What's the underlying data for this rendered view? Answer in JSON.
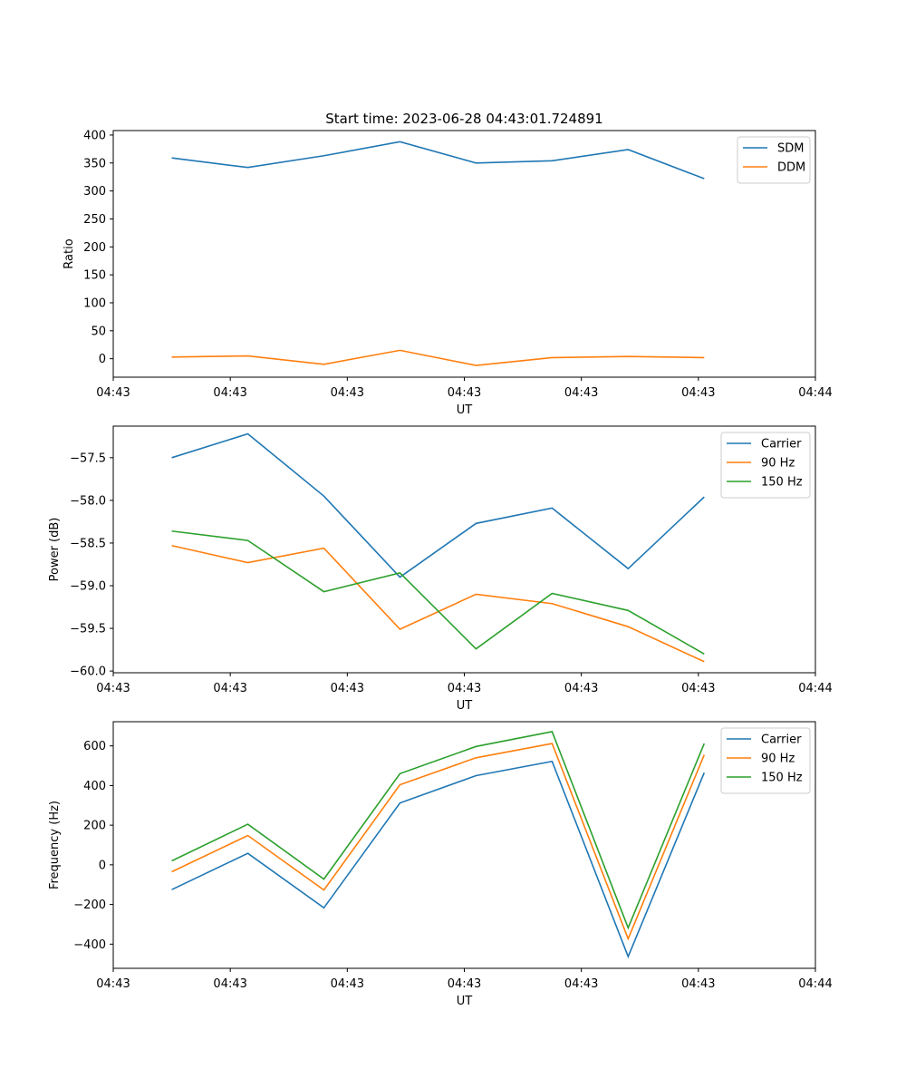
{
  "figure": {
    "title": "Start time: 2023-06-28 04:43:01.724891"
  },
  "chart_data": [
    {
      "type": "line",
      "ylabel": "Ratio",
      "xlabel": "UT",
      "xlim": [
        0,
        12
      ],
      "xticks": [
        0,
        2,
        4,
        6,
        8,
        10,
        12
      ],
      "xtick_labels": [
        "04:43",
        "04:43",
        "04:43",
        "04:43",
        "04:43",
        "04:43",
        "04:44"
      ],
      "ylim": [
        -33,
        408
      ],
      "yticks": [
        0,
        50,
        100,
        150,
        200,
        250,
        300,
        350,
        400
      ],
      "ytick_labels": [
        "0",
        "50",
        "100",
        "150",
        "200",
        "250",
        "300",
        "350",
        "400"
      ],
      "x": [
        1,
        2.3,
        3.6,
        4.9,
        6.2,
        7.5,
        8.8,
        10.1
      ],
      "series": [
        {
          "name": "SDM",
          "color": "#1f77b4",
          "values": [
            359,
            342,
            363,
            388,
            350,
            354,
            374,
            322
          ]
        },
        {
          "name": "DDM",
          "color": "#ff7f0e",
          "values": [
            3,
            5,
            -10,
            15,
            -12,
            2,
            4,
            2
          ]
        }
      ],
      "legend": "top-right",
      "grid": false
    },
    {
      "type": "line",
      "ylabel": "Power (dB)",
      "xlabel": "UT",
      "xlim": [
        0,
        12
      ],
      "xticks": [
        0,
        2,
        4,
        6,
        8,
        10,
        12
      ],
      "xtick_labels": [
        "04:43",
        "04:43",
        "04:43",
        "04:43",
        "04:43",
        "04:43",
        "04:44"
      ],
      "ylim": [
        -60.02,
        -57.13
      ],
      "yticks": [
        -60.0,
        -59.5,
        -59.0,
        -58.5,
        -58.0,
        -57.5
      ],
      "ytick_labels": [
        "−60.0",
        "−59.5",
        "−59.0",
        "−58.5",
        "−58.0",
        "−57.5"
      ],
      "x": [
        1,
        2.3,
        3.6,
        4.9,
        6.2,
        7.5,
        8.8,
        10.1
      ],
      "series": [
        {
          "name": "Carrier",
          "color": "#1f77b4",
          "values": [
            -57.5,
            -57.22,
            -57.95,
            -58.9,
            -58.27,
            -58.09,
            -58.8,
            -57.96
          ]
        },
        {
          "name": "90 Hz",
          "color": "#ff7f0e",
          "values": [
            -58.53,
            -58.73,
            -58.56,
            -59.51,
            -59.1,
            -59.21,
            -59.48,
            -59.89
          ]
        },
        {
          "name": "150 Hz",
          "color": "#2ca02c",
          "values": [
            -58.36,
            -58.47,
            -59.07,
            -58.85,
            -59.74,
            -59.09,
            -59.29,
            -59.8
          ]
        }
      ],
      "legend": "top-right",
      "grid": false
    },
    {
      "type": "line",
      "ylabel": "Frequency (Hz)",
      "xlabel": "UT",
      "xlim": [
        0,
        12
      ],
      "xticks": [
        0,
        2,
        4,
        6,
        8,
        10,
        12
      ],
      "xtick_labels": [
        "04:43",
        "04:43",
        "04:43",
        "04:43",
        "04:43",
        "04:43",
        "04:44"
      ],
      "ylim": [
        -522,
        722
      ],
      "yticks": [
        -400,
        -200,
        0,
        200,
        400,
        600
      ],
      "ytick_labels": [
        "−400",
        "−200",
        "0",
        "200",
        "400",
        "600"
      ],
      "x": [
        1,
        2.3,
        3.6,
        4.9,
        6.2,
        7.5,
        8.8,
        10.1
      ],
      "series": [
        {
          "name": "Carrier",
          "color": "#1f77b4",
          "values": [
            -125,
            58,
            -217,
            312,
            450,
            522,
            -463,
            465
          ]
        },
        {
          "name": "90 Hz",
          "color": "#ff7f0e",
          "values": [
            -35,
            148,
            -127,
            404,
            540,
            612,
            -373,
            555
          ]
        },
        {
          "name": "150 Hz",
          "color": "#2ca02c",
          "values": [
            20,
            205,
            -72,
            460,
            597,
            672,
            -318,
            612
          ]
        }
      ],
      "legend": "top-right",
      "grid": false
    }
  ]
}
